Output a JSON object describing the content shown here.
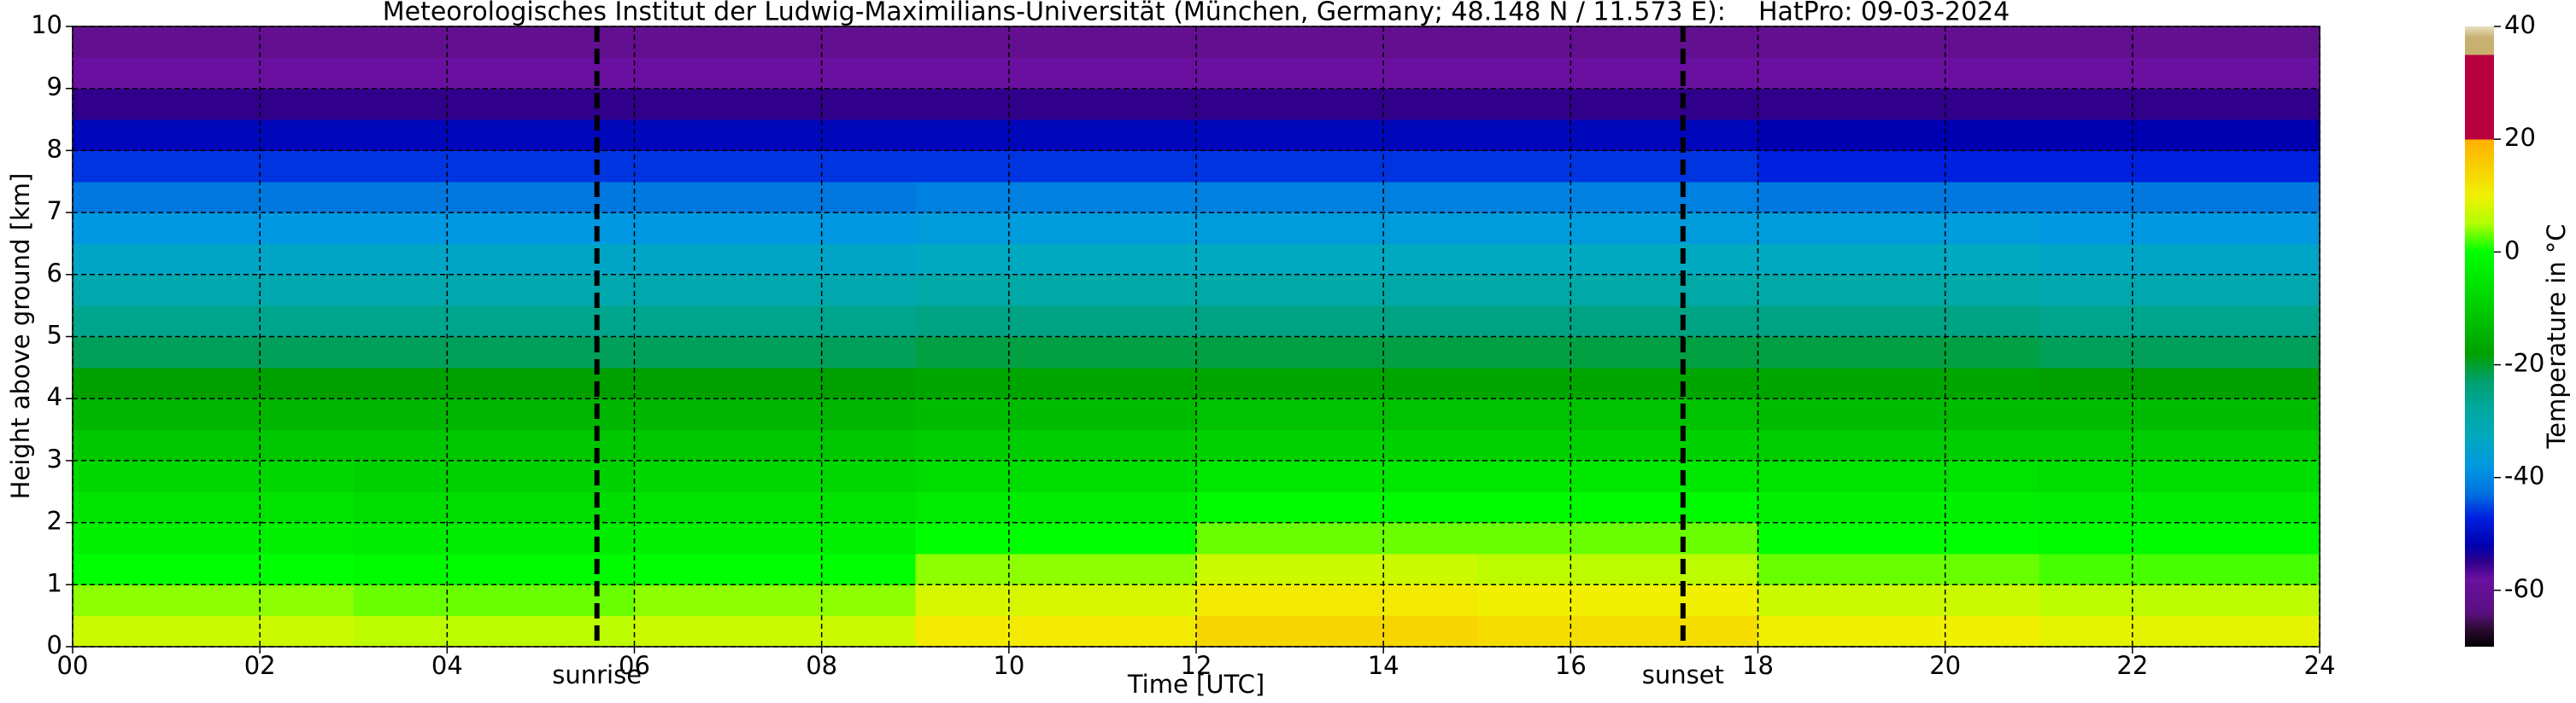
{
  "chart_data": {
    "type": "heatmap",
    "title": "Meteorologisches Institut der Ludwig-Maximilians-Universität (München, Germany; 48.148 N / 11.573 E):    HatPro: 09-03-2024",
    "x_label": "Time [UTC]",
    "y_label": "Height above ground [km]",
    "colorbar_label": "Temperature in °C",
    "xlim": [
      0,
      24
    ],
    "ylim": [
      0,
      10
    ],
    "xticks": [
      {
        "value": 0,
        "label": "00"
      },
      {
        "value": 2,
        "label": "02"
      },
      {
        "value": 4,
        "label": "04"
      },
      {
        "value": 6,
        "label": "06"
      },
      {
        "value": 8,
        "label": "08"
      },
      10,
      12,
      14,
      16,
      18,
      20,
      22,
      24
    ],
    "yticks": [
      0,
      1,
      2,
      3,
      4,
      5,
      6,
      7,
      8,
      9,
      10
    ],
    "grid": true,
    "x_edges": [
      0,
      3,
      6,
      9,
      12,
      15,
      18,
      21,
      24
    ],
    "y_edges": [
      0,
      0.5,
      1,
      1.5,
      2,
      2.5,
      3,
      3.5,
      4,
      4.5,
      5,
      5.5,
      6,
      6.5,
      7,
      7.5,
      8,
      8.5,
      9,
      9.5,
      10
    ],
    "values": [
      [
        7,
        6,
        7,
        11,
        14,
        13,
        10,
        9
      ],
      [
        4,
        3,
        4,
        8,
        11,
        10,
        7,
        6
      ],
      [
        0,
        -1,
        0,
        4,
        7,
        6,
        3,
        2
      ],
      [
        -3,
        -4,
        -3,
        0,
        3,
        3,
        0,
        -1
      ],
      [
        -6,
        -7,
        -6,
        -4,
        -1,
        -1,
        -3,
        -4
      ],
      [
        -8,
        -9,
        -8,
        -7,
        -5,
        -5,
        -6,
        -7
      ],
      [
        -11,
        -11,
        -11,
        -10,
        -9,
        -9,
        -10,
        -10
      ],
      [
        -14,
        -14,
        -14,
        -13,
        -12,
        -12,
        -13,
        -13
      ],
      [
        -18,
        -18,
        -18,
        -17,
        -17,
        -17,
        -17,
        -18
      ],
      [
        -22,
        -22,
        -22,
        -21,
        -21,
        -21,
        -21,
        -22
      ],
      [
        -26,
        -26,
        -26,
        -25,
        -25,
        -25,
        -25,
        -26
      ],
      [
        -30,
        -30,
        -30,
        -29,
        -29,
        -29,
        -29,
        -30
      ],
      [
        -34,
        -34,
        -34,
        -33,
        -33,
        -33,
        -33,
        -34
      ],
      [
        -38,
        -38,
        -38,
        -37,
        -37,
        -37,
        -37,
        -38
      ],
      [
        -42,
        -42,
        -42,
        -41,
        -41,
        -41,
        -42,
        -42
      ],
      [
        -46,
        -46,
        -46,
        -46,
        -46,
        -46,
        -47,
        -47
      ],
      [
        -51,
        -51,
        -51,
        -51,
        -51,
        -51,
        -52,
        -52
      ],
      [
        -55,
        -55,
        -55,
        -55,
        -55,
        -55,
        -55,
        -55
      ],
      [
        -58,
        -58,
        -58,
        -58,
        -58,
        -58,
        -58,
        -58
      ],
      [
        -61,
        -61,
        -61,
        -61,
        -61,
        -61,
        -61,
        -61
      ]
    ],
    "clim": [
      -70,
      40
    ],
    "cticks": [
      -60,
      -40,
      -20,
      0,
      20,
      40
    ],
    "colormap": [
      {
        "value": -70,
        "color": "#000000"
      },
      {
        "value": -67,
        "color": "#2a0a30"
      },
      {
        "value": -64,
        "color": "#5a1080"
      },
      {
        "value": -58,
        "color": "#6a10a0"
      },
      {
        "value": -55,
        "color": "#30008a"
      },
      {
        "value": -52,
        "color": "#0000b0"
      },
      {
        "value": -47,
        "color": "#0020e0"
      },
      {
        "value": -43,
        "color": "#0070e0"
      },
      {
        "value": -38,
        "color": "#0098e0"
      },
      {
        "value": -33,
        "color": "#00a8c0"
      },
      {
        "value": -28,
        "color": "#00a8a0"
      },
      {
        "value": -23,
        "color": "#00a070"
      },
      {
        "value": -18,
        "color": "#00a000"
      },
      {
        "value": -8,
        "color": "#00d800"
      },
      {
        "value": 0,
        "color": "#00ff00"
      },
      {
        "value": 5,
        "color": "#b0ff00"
      },
      {
        "value": 10,
        "color": "#f0f000"
      },
      {
        "value": 19.9,
        "color": "#ffb000"
      },
      {
        "value": 20,
        "color": "#b80040"
      },
      {
        "value": 34.9,
        "color": "#b80040"
      },
      {
        "value": 35,
        "color": "#c8b070"
      },
      {
        "value": 38,
        "color": "#c8b070"
      },
      {
        "value": 40,
        "color": "#e8e0c0"
      }
    ],
    "annotations": [
      {
        "x": 5.6,
        "label": "sunrise"
      },
      {
        "x": 17.2,
        "label": "sunset"
      }
    ]
  }
}
